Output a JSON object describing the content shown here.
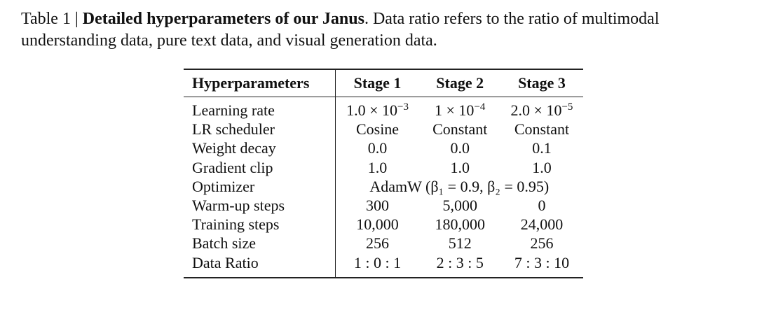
{
  "caption": {
    "prefix": "Table 1 | ",
    "title": "Detailed hyperparameters of our Janus",
    "rest": ". Data ratio refers to the ratio of multimodal understanding data, pure text data, and visual generation data."
  },
  "table": {
    "headers": [
      "Hyperparameters",
      "Stage 1",
      "Stage 2",
      "Stage 3"
    ],
    "learning_rate": {
      "label": "Learning rate",
      "s1_base": "1.0 × 10",
      "s1_exp": "−3",
      "s2_base": "1 × 10",
      "s2_exp": "−4",
      "s3_base": "2.0 × 10",
      "s3_exp": "−5"
    },
    "lr_scheduler": {
      "label": "LR scheduler",
      "values": [
        "Cosine",
        "Constant",
        "Constant"
      ]
    },
    "weight_decay": {
      "label": "Weight decay",
      "values": [
        "0.0",
        "0.0",
        "0.1"
      ]
    },
    "gradient_clip": {
      "label": "Gradient clip",
      "values": [
        "1.0",
        "1.0",
        "1.0"
      ]
    },
    "optimizer": {
      "label": "Optimizer",
      "value": "AdamW (β₁ = 0.9, β₂ = 0.95)"
    },
    "warmup_steps": {
      "label": "Warm-up steps",
      "values": [
        "300",
        "5,000",
        "0"
      ]
    },
    "training_steps": {
      "label": "Training steps",
      "values": [
        "10,000",
        "180,000",
        "24,000"
      ]
    },
    "batch_size": {
      "label": "Batch size",
      "values": [
        "256",
        "512",
        "256"
      ]
    },
    "data_ratio": {
      "label": "Data Ratio",
      "values": [
        "1 : 0 : 1",
        "2 : 3 : 5",
        "7 : 3 : 10"
      ]
    }
  }
}
